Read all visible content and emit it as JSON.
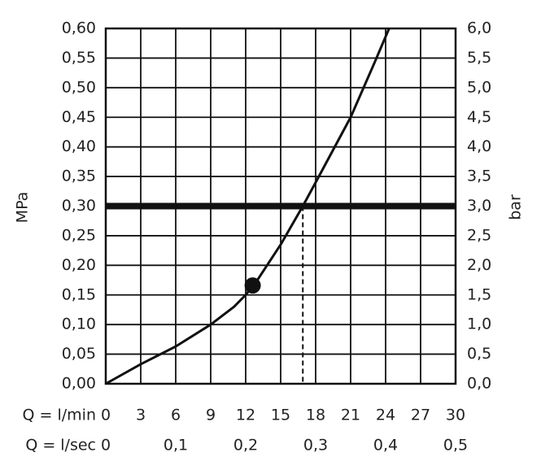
{
  "chart_data": {
    "type": "line",
    "xlabel": "Q = l/min",
    "x2label": "Q = l/sec",
    "ylabel": "MPa",
    "y2label": "bar",
    "xlim": [
      0,
      30
    ],
    "xticks": [
      0,
      3,
      6,
      9,
      12,
      15,
      18,
      21,
      24,
      27,
      30
    ],
    "x2lim": [
      0,
      0.5
    ],
    "x2ticks": [
      0,
      {
        "value": 0.1,
        "label": "0,1"
      },
      {
        "value": 0.2,
        "label": "0,2"
      },
      {
        "value": 0.3,
        "label": "0,3"
      },
      {
        "value": 0.4,
        "label": "0,4"
      },
      {
        "value": 0.5,
        "label": "0,5"
      }
    ],
    "ylim": [
      0,
      0.6
    ],
    "yticks": [
      {
        "value": 0,
        "label": "0,00"
      },
      {
        "value": 0.05,
        "label": "0,05"
      },
      {
        "value": 0.1,
        "label": "0,10"
      },
      {
        "value": 0.15,
        "label": "0,15"
      },
      {
        "value": 0.2,
        "label": "0,20"
      },
      {
        "value": 0.25,
        "label": "0,25"
      },
      {
        "value": 0.3,
        "label": "0,30"
      },
      {
        "value": 0.35,
        "label": "0,35"
      },
      {
        "value": 0.4,
        "label": "0,40"
      },
      {
        "value": 0.45,
        "label": "0,45"
      },
      {
        "value": 0.5,
        "label": "0,50"
      },
      {
        "value": 0.55,
        "label": "0,55"
      },
      {
        "value": 0.6,
        "label": "0,60"
      }
    ],
    "y2lim": [
      0,
      6
    ],
    "y2ticks": [
      {
        "value": 0,
        "label": "0,0"
      },
      {
        "value": 0.5,
        "label": "0,5"
      },
      {
        "value": 1,
        "label": "1,0"
      },
      {
        "value": 1.5,
        "label": "1,5"
      },
      {
        "value": 2,
        "label": "2,0"
      },
      {
        "value": 2.5,
        "label": "2,5"
      },
      {
        "value": 3,
        "label": "3,0"
      },
      {
        "value": 3.5,
        "label": "3,5"
      },
      {
        "value": 4,
        "label": "4,0"
      },
      {
        "value": 4.5,
        "label": "4,5"
      },
      {
        "value": 5,
        "label": "5,0"
      },
      {
        "value": 5.5,
        "label": "5,5"
      },
      {
        "value": 6,
        "label": "6,0"
      }
    ],
    "grid": true,
    "color": "#111111",
    "x": [
      0,
      3,
      6,
      9,
      11,
      12,
      13,
      15,
      16.9,
      18,
      21,
      23,
      24.3
    ],
    "values": [
      0,
      0.033,
      0.063,
      0.1,
      0.13,
      0.15,
      0.175,
      0.235,
      0.3,
      0.34,
      0.45,
      0.54,
      0.6
    ],
    "marker": {
      "x": 12.6,
      "y": 0.166
    },
    "hline": 0.3,
    "vline": {
      "x": 16.9,
      "y": 0.3
    }
  }
}
